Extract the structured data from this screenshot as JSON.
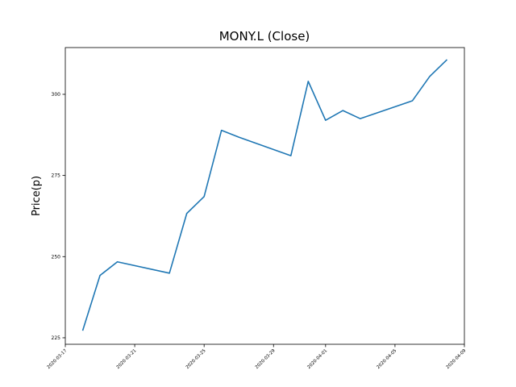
{
  "chart_data": {
    "type": "line",
    "title": "MONY.L (Close)",
    "y_label": "Price(p)",
    "x": [
      "2020-03-18",
      "2020-03-19",
      "2020-03-20",
      "2020-03-23",
      "2020-03-24",
      "2020-03-25",
      "2020-03-26",
      "2020-03-27",
      "2020-03-30",
      "2020-03-31",
      "2020-04-01",
      "2020-04-02",
      "2020-04-03",
      "2020-04-06",
      "2020-04-07",
      "2020-04-08"
    ],
    "values": [
      227.2,
      244.2,
      248.4,
      244.9,
      263.3,
      268.5,
      288.9,
      286.8,
      281.1,
      304.0,
      292.0,
      295.0,
      292.5,
      298.0,
      305.5,
      310.7
    ],
    "color": "#1f77b4",
    "xlim": [
      "2020-03-17",
      "2020-04-09"
    ],
    "xticks": [
      "2020-03-17",
      "2020-03-21",
      "2020-03-25",
      "2020-03-29",
      "2020-04-01",
      "2020-04-05",
      "2020-04-09"
    ],
    "ylim": [
      223.0,
      314.4
    ],
    "yticks": [
      225,
      250,
      275,
      300
    ],
    "grid": false
  }
}
